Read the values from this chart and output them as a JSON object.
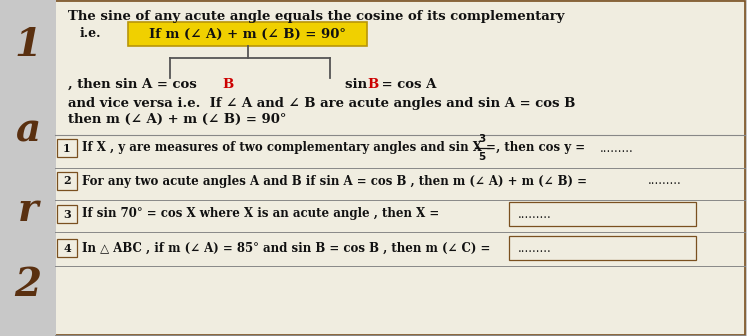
{
  "bg_color": "#c8c8c8",
  "box_bg": "#f0ede0",
  "title": "The sine of any acute angle equals the cosine of its complementary",
  "ie_label": "i.e.",
  "highlight_text": "If m (∠ A) + m (∠ B) = 90°",
  "highlight_bg": "#f0d000",
  "branch_left_pre": ", then sin A = cos ",
  "branch_left_B": "B",
  "branch_right_pre": "sin ",
  "branch_right_B": "B",
  "branch_right_post": " = cos A",
  "vice_line1": "and vice versa i.e.  If ∠ A and ∠ B are acute angles and sin A = cos B",
  "vice_line2": "then m (∠ A) + m (∠ B) = 90°",
  "red_color": "#cc0000",
  "left_letters": [
    "1",
    "a",
    "r",
    "2"
  ],
  "left_color": "#5a3010",
  "border_color": "#7a5020",
  "text_color": "#111111",
  "highlight_border": "#b8960a",
  "q1_text": "If X , y are measures of two complementary angles and sin X = ",
  "q2_text": "For any two acute angles A and B if sin A = cos B , then m (∠ A) + m (∠ B) = ",
  "q3_text": "If sin 70° = cos X where X is an acute angle , then X = ",
  "q4_text": "In △ ABC , if m (∠ A) = 85° and sin B = cos B , then m (∠ C) = ",
  "dotted": ".........",
  "q_numbers": [
    "1",
    "2",
    "3",
    "4"
  ]
}
